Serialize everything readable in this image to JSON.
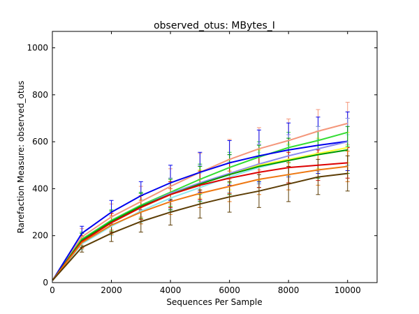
{
  "chart_data": {
    "type": "line",
    "title": "observed_otus: MBytes_I",
    "xlabel": "Sequences Per Sample",
    "ylabel": "Rarefaction Measure: observed_otus",
    "xlim": [
      0,
      11000
    ],
    "ylim": [
      0,
      1070
    ],
    "xticks": [
      0,
      2000,
      4000,
      6000,
      8000,
      10000
    ],
    "yticks": [
      0,
      200,
      400,
      600,
      800,
      1000
    ],
    "grid": false,
    "x": [
      10,
      1000,
      2000,
      3000,
      4000,
      5000,
      6000,
      7000,
      8000,
      9000,
      10000
    ],
    "series": [
      {
        "color": "#f4967a",
        "values": [
          10,
          195,
          280,
          345,
          410,
          470,
          525,
          570,
          605,
          645,
          678
        ],
        "errors": [
          0,
          35,
          55,
          65,
          75,
          80,
          85,
          90,
          92,
          92,
          90
        ]
      },
      {
        "color": "#33dd33",
        "values": [
          10,
          185,
          265,
          330,
          385,
          440,
          490,
          535,
          575,
          605,
          640
        ],
        "errors": [
          0,
          30,
          45,
          55,
          60,
          65,
          65,
          65,
          65,
          60,
          60
        ]
      },
      {
        "color": "#0000ee",
        "values": [
          10,
          210,
          300,
          370,
          425,
          470,
          510,
          540,
          565,
          585,
          602
        ],
        "errors": [
          0,
          30,
          50,
          60,
          75,
          85,
          95,
          110,
          115,
          120,
          125
        ]
      },
      {
        "color": "#8888ee",
        "values": [
          10,
          180,
          260,
          325,
          380,
          425,
          465,
          505,
          540,
          570,
          600
        ],
        "errors": [
          0,
          30,
          45,
          55,
          65,
          75,
          80,
          85,
          90,
          95,
          100
        ]
      },
      {
        "color": "#ffff33",
        "values": [
          10,
          175,
          255,
          320,
          375,
          420,
          460,
          500,
          525,
          550,
          575
        ],
        "errors": [
          0,
          25,
          40,
          50,
          55,
          60,
          65,
          65,
          65,
          65,
          65
        ]
      },
      {
        "color": "#8fe8f0",
        "values": [
          10,
          165,
          240,
          305,
          360,
          405,
          450,
          490,
          520,
          545,
          565
        ],
        "errors": [
          0,
          25,
          40,
          50,
          55,
          60,
          65,
          65,
          65,
          65,
          65
        ]
      },
      {
        "color": "#009900",
        "values": [
          10,
          180,
          260,
          325,
          375,
          420,
          460,
          495,
          520,
          545,
          565
        ],
        "errors": [
          0,
          30,
          45,
          55,
          65,
          75,
          85,
          90,
          95,
          100,
          100
        ]
      },
      {
        "color": "#dd0000",
        "values": [
          10,
          175,
          255,
          320,
          375,
          415,
          445,
          470,
          490,
          500,
          510
        ],
        "errors": [
          0,
          25,
          40,
          50,
          55,
          60,
          65,
          65,
          65,
          65,
          65
        ]
      },
      {
        "color": "#ee7711",
        "values": [
          10,
          170,
          245,
          300,
          345,
          380,
          410,
          440,
          460,
          480,
          495
        ],
        "errors": [
          0,
          25,
          40,
          50,
          55,
          60,
          65,
          65,
          65,
          65,
          65
        ]
      },
      {
        "color": "#5c3d05",
        "values": [
          10,
          150,
          210,
          260,
          300,
          335,
          365,
          390,
          420,
          450,
          465
        ],
        "errors": [
          0,
          20,
          35,
          45,
          55,
          60,
          65,
          70,
          75,
          75,
          75
        ]
      }
    ]
  }
}
